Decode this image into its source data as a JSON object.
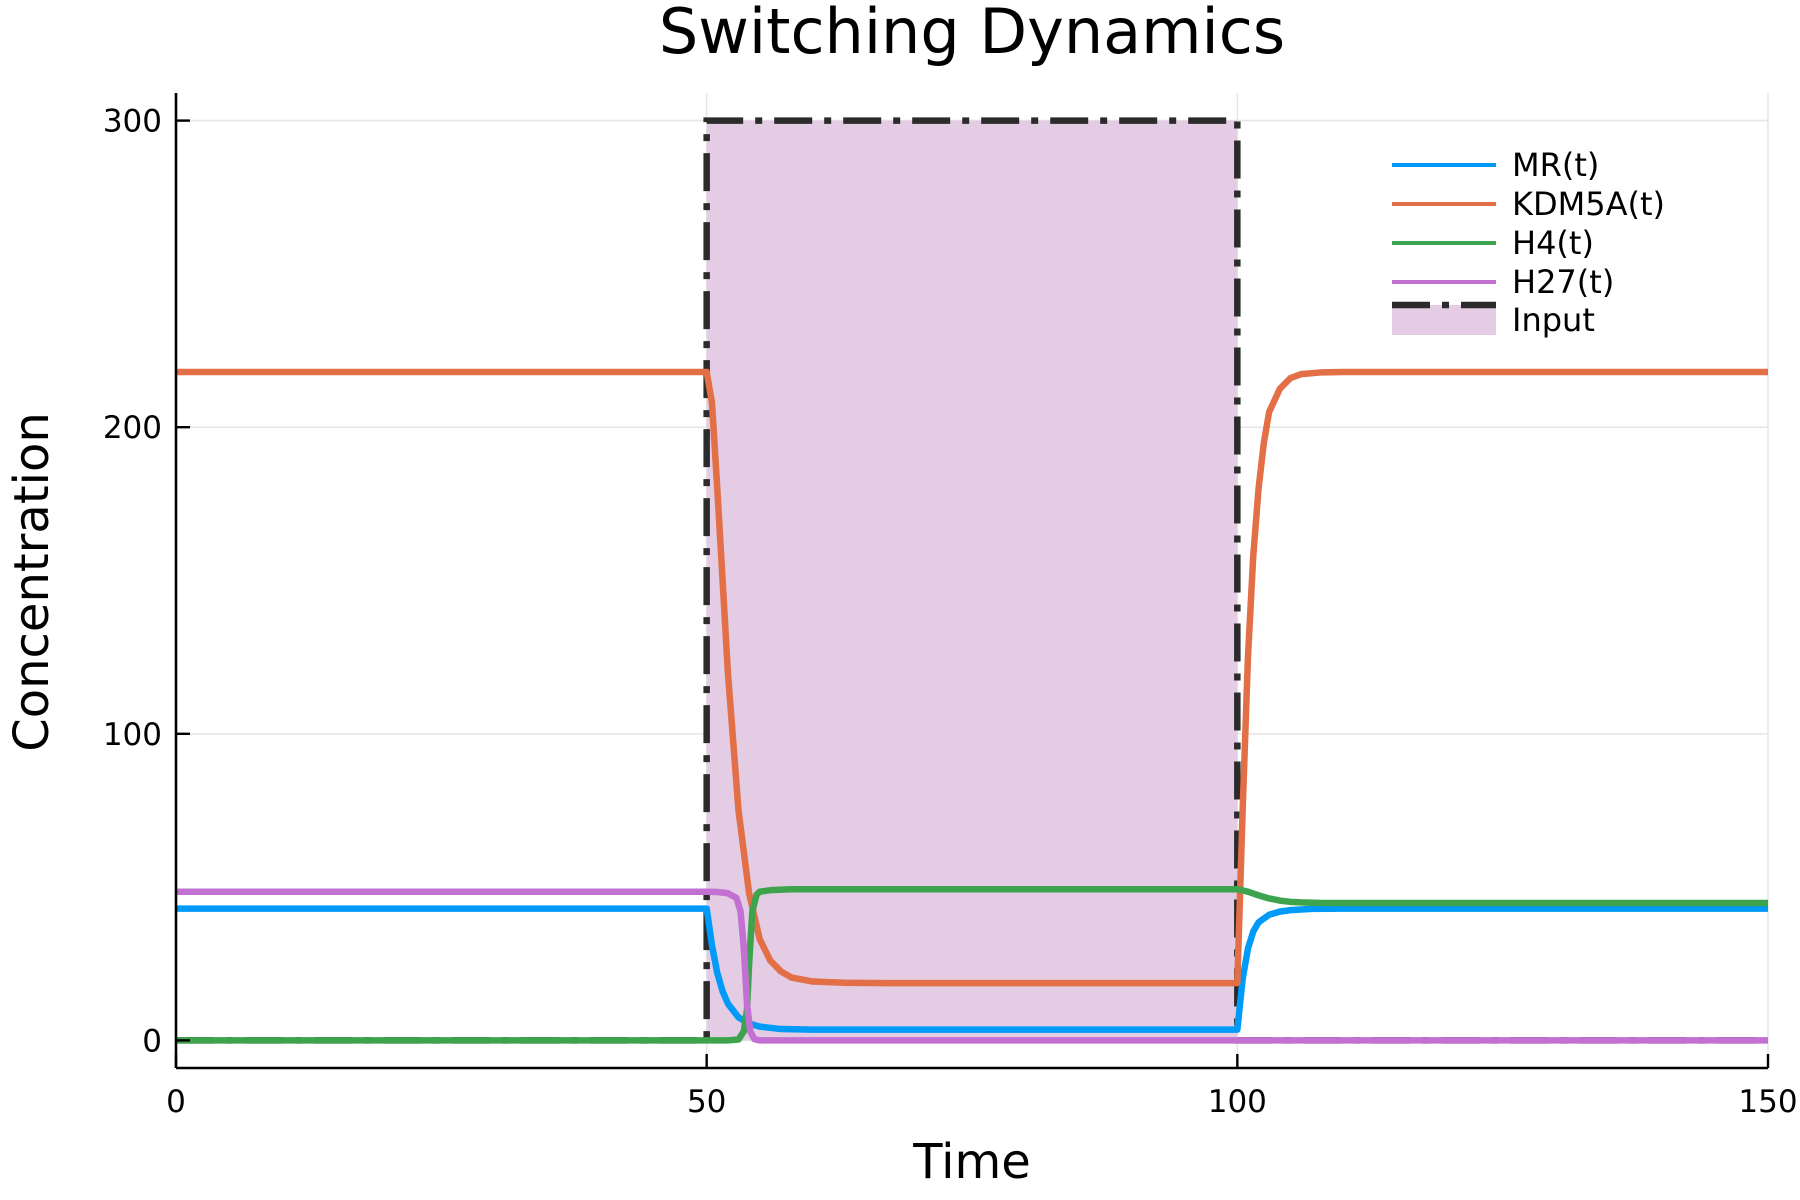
{
  "chart_data": {
    "type": "line",
    "title": "Switching Dynamics",
    "xlabel": "Time",
    "ylabel": "Concentration",
    "xlim": [
      0,
      150
    ],
    "ylim": [
      -9,
      309
    ],
    "xticks": [
      0,
      50,
      100,
      150
    ],
    "yticks": [
      0,
      100,
      200,
      300
    ],
    "xtick_labels": [
      "0",
      "50",
      "100",
      "150"
    ],
    "ytick_labels": [
      "0",
      "100",
      "200",
      "300"
    ],
    "grid": true,
    "legend_position": "top-right",
    "input_shading": {
      "name": "Input",
      "x": [
        50,
        100
      ],
      "level": 300,
      "color": "#e3cce4"
    },
    "series": [
      {
        "name": "MR(t)",
        "color": "#009af9",
        "x": [
          0,
          50,
          50.5,
          51,
          51.5,
          52,
          53,
          54,
          55,
          57,
          60,
          100,
          100.5,
          101,
          101.5,
          102,
          103,
          104,
          105,
          107,
          110,
          150
        ],
        "y": [
          43,
          43,
          31,
          22,
          16,
          12,
          7.5,
          5.5,
          4.5,
          3.7,
          3.5,
          3.5,
          20,
          30,
          35.5,
          38.5,
          41,
          42,
          42.5,
          42.9,
          43,
          43
        ]
      },
      {
        "name": "KDM5A(t)",
        "color": "#e26f46",
        "x": [
          0,
          50,
          50.5,
          51,
          52,
          53,
          54,
          55,
          56,
          57,
          58,
          60,
          63,
          67,
          100,
          100.5,
          101,
          101.5,
          102,
          102.5,
          103,
          104,
          105,
          106,
          108,
          110,
          150
        ],
        "y": [
          218,
          218,
          208,
          180,
          120,
          75,
          48,
          33,
          26,
          22.5,
          20.5,
          19.2,
          18.8,
          18.7,
          18.7,
          75,
          125,
          158,
          180,
          195,
          205,
          212.5,
          216,
          217.3,
          217.9,
          218,
          218
        ]
      },
      {
        "name": "H4(t)",
        "color": "#3da44d",
        "x": [
          0,
          50,
          52,
          53,
          53.5,
          53.8,
          54,
          54.3,
          54.7,
          55,
          56,
          58,
          60,
          100,
          101,
          102,
          103,
          104,
          105,
          106,
          108,
          110,
          150
        ],
        "y": [
          0,
          0,
          0,
          0.3,
          3,
          10,
          25,
          42,
          47.5,
          48.5,
          49,
          49.3,
          49.3,
          49.3,
          48.5,
          47.3,
          46.3,
          45.6,
          45.2,
          45,
          44.8,
          44.8,
          44.8
        ]
      },
      {
        "name": "H27(t)",
        "color": "#c271d2",
        "x": [
          0,
          50,
          51,
          52,
          52.8,
          53.2,
          53.5,
          53.8,
          54.1,
          54.5,
          55,
          100,
          150
        ],
        "y": [
          48.5,
          48.5,
          48.4,
          48,
          46.5,
          42,
          30,
          12,
          3,
          0.4,
          0,
          0,
          0
        ]
      }
    ],
    "input_line": {
      "name": "Input",
      "color": "#2b2b2b",
      "x": [
        0,
        50,
        50,
        100,
        100,
        150
      ],
      "y": [
        0,
        0,
        300,
        300,
        0,
        0
      ]
    }
  }
}
